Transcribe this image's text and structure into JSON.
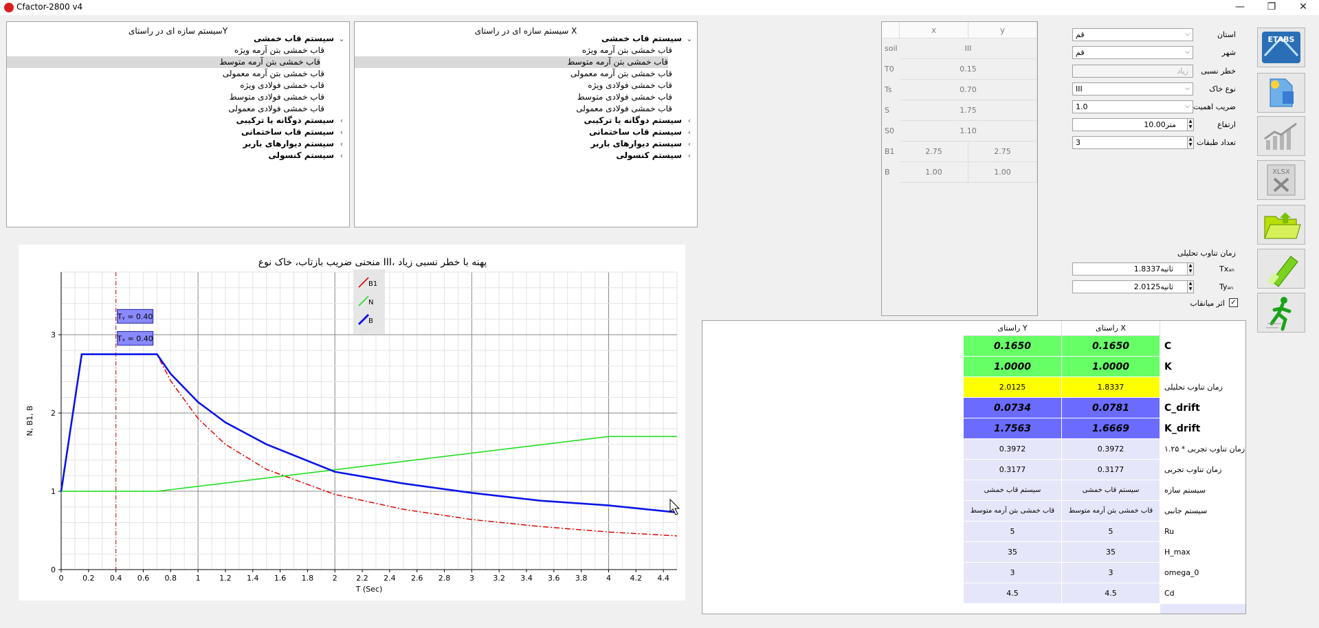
{
  "window": {
    "title": "Cfactor-2800 v4",
    "buttons": [
      "—",
      "❐",
      "✕"
    ]
  },
  "tree_y": {
    "title": "سیستم سازه ای در راستایY",
    "items": [
      {
        "label": "سیستم قاب خمشی",
        "bold": true,
        "chevron": "⌄"
      },
      {
        "label": "قاب خمشی بتن آرمه ویژه"
      },
      {
        "label": "قاب خمشی بتن آرمه متوسط",
        "selected": true
      },
      {
        "label": "قاب خمشی بتن آرمه معمولی"
      },
      {
        "label": "قاب خمشی فولادی ویژه"
      },
      {
        "label": "قاب خمشی فولادی متوسط"
      },
      {
        "label": "قاب خمشی فولادی معمولی"
      },
      {
        "label": "سیستم دوگانه یا ترکیبی",
        "bold": true,
        "chevron": "‹"
      },
      {
        "label": "سیستم قاب ساختمانی",
        "bold": true,
        "chevron": "‹"
      },
      {
        "label": "سیستم دیوارهای باربر",
        "bold": true,
        "chevron": "‹"
      },
      {
        "label": "سیستم کنسولی",
        "bold": true,
        "chevron": "‹"
      }
    ]
  },
  "tree_x": {
    "title": "سیستم سازه ای در راستای X",
    "items": [
      {
        "label": "سیستم قاب خمشی",
        "bold": true,
        "chevron": "⌄"
      },
      {
        "label": "قاب خمشی بتن آرمه ویژه"
      },
      {
        "label": "قاب خمشی بتن آرمه متوسط",
        "selected": true
      },
      {
        "label": "قاب خمشی بتن آرمه معمولی"
      },
      {
        "label": "قاب خمشی فولادی ویژه"
      },
      {
        "label": "قاب خمشی فولادی متوسط"
      },
      {
        "label": "قاب خمشی فولادی معمولی"
      },
      {
        "label": "سیستم دوگانه یا ترکیبی",
        "bold": true,
        "chevron": "‹"
      },
      {
        "label": "سیستم قاب ساختمانی",
        "bold": true,
        "chevron": "‹"
      },
      {
        "label": "سیستم دیوارهای باربر",
        "bold": true,
        "chevron": "‹"
      },
      {
        "label": "سیستم کنسولی",
        "bold": true,
        "chevron": "‹"
      }
    ]
  },
  "soil_grid": {
    "headers": [
      "x",
      "y"
    ],
    "rows": [
      {
        "label": "soil",
        "x": "III",
        "y": null
      },
      {
        "label": "T0",
        "x": "0.15",
        "y": null
      },
      {
        "label": "Ts",
        "x": "0.70",
        "y": null
      },
      {
        "label": "S",
        "x": "1.75",
        "y": null
      },
      {
        "label": "S0",
        "x": "1.10",
        "y": null
      },
      {
        "label": "B1",
        "x": "2.75",
        "y": "2.75"
      },
      {
        "label": "B",
        "x": "1.00",
        "y": "1.00"
      }
    ]
  },
  "form": {
    "province_label": "استان",
    "province_value": "قم",
    "city_label": "شهر",
    "city_value": "قم",
    "risk_label": "خطر نسبی",
    "risk_value": "زیاد",
    "soil_label": "نوع خاک",
    "soil_value": "III",
    "importance_label": "ضریب اهمیت",
    "importance_value": "1.0",
    "height_label": "ارتفاع",
    "height_value": "10.00",
    "height_unit": "متر",
    "stories_label": "تعداد طبقات",
    "stories_value": "3",
    "period_group_label": "زمان تناوب تحلیلی",
    "tx_label": "Txₐₙ",
    "tx_value": "1.8337",
    "tx_unit": "ثانیه",
    "ty_label": "Tyₐₙ",
    "ty_value": "2.0125",
    "ty_unit": "ثانیه",
    "infill_label": "اثر میانقاب",
    "infill_checked": true
  },
  "side_buttons": [
    "etabs-icon",
    "file-icon",
    "chart-icon",
    "excel-icon",
    "open-folder-icon",
    "eraser-icon",
    "runner-icon"
  ],
  "side_button_text": {
    "etabs": "ETABS",
    "xlsx": "XLSX"
  },
  "chart_data": {
    "type": "line",
    "title": "منحنی ضریب بازتاب، خاک نوع III، پهنه با خطر نسبی زیاد",
    "xlabel": "T (Sec)",
    "ylabel": "N, B1, B",
    "xlim": [
      0,
      4.5
    ],
    "ylim": [
      0,
      3.8
    ],
    "xticks": [
      "0",
      "0.2",
      "0.4",
      "0.6",
      "0.8",
      "1",
      "1.2",
      "1.4",
      "1.6",
      "1.8",
      "2",
      "2.2",
      "2.4",
      "2.6",
      "2.8",
      "3",
      "3.2",
      "3.4",
      "3.6",
      "3.8",
      "4",
      "4.2",
      "4.4"
    ],
    "yticks": [
      "0",
      "1",
      "2",
      "3"
    ],
    "legend": [
      "B1",
      "N",
      "B"
    ],
    "legend_position": "top-center",
    "colors": {
      "B1": "#e00000",
      "N": "#22dd22",
      "B": "#0a14e6",
      "vline": "#c00000"
    },
    "grid": true,
    "vline_x": 0.4,
    "annotations": [
      "Tᵧ = 0.40",
      "Tₓ = 0.40"
    ],
    "series": [
      {
        "name": "B1",
        "x": [
          0,
          0.15,
          0.7,
          0.8,
          1,
          1.2,
          1.5,
          2,
          2.5,
          3,
          3.5,
          4,
          4.5
        ],
        "values": [
          1,
          2.75,
          2.75,
          2.41,
          1.93,
          1.6,
          1.28,
          0.96,
          0.77,
          0.64,
          0.55,
          0.48,
          0.43
        ]
      },
      {
        "name": "N",
        "x": [
          0,
          0.7,
          4,
          4.5
        ],
        "values": [
          1,
          1,
          1.7,
          1.7
        ]
      },
      {
        "name": "B",
        "x": [
          0,
          0.15,
          0.7,
          0.8,
          1,
          1.2,
          1.5,
          2,
          2.5,
          3,
          3.5,
          4,
          4.5
        ],
        "values": [
          1,
          2.75,
          2.75,
          2.5,
          2.14,
          1.88,
          1.6,
          1.25,
          1.1,
          0.98,
          0.88,
          0.82,
          0.73
        ]
      }
    ]
  },
  "results": {
    "headers": [
      "راستای X",
      "راستای Y"
    ],
    "rows": [
      {
        "label": "C",
        "x": "0.1650",
        "y": "0.1650",
        "style": "green"
      },
      {
        "label": "K",
        "x": "1.0000",
        "y": "1.0000",
        "style": "green"
      },
      {
        "label": "زمان تناوب تحلیلی",
        "x": "1.8337",
        "y": "2.0125",
        "style": "yellow"
      },
      {
        "label": "C_drift",
        "x": "0.0781",
        "y": "0.0734",
        "style": "blue"
      },
      {
        "label": "K_drift",
        "x": "1.6669",
        "y": "1.7563",
        "style": "blue"
      },
      {
        "label": "زمان تناوب تجربی * ۱.۲۵",
        "x": "0.3972",
        "y": "0.3972",
        "style": "plain"
      },
      {
        "label": "زمان تناوب تجربی",
        "x": "0.3177",
        "y": "0.3177",
        "style": "plain"
      },
      {
        "label": "سیستم سازه",
        "x": "سیستم قاب خمشی",
        "y": "سیستم قاب خمشی",
        "style": "plain"
      },
      {
        "label": "سیستم جانبی",
        "x": "قاب خمشی بتن آرمه متوسط",
        "y": "قاب خمشی بتن آرمه متوسط",
        "style": "plain"
      },
      {
        "label": "Ru",
        "x": "5",
        "y": "5",
        "style": "plain"
      },
      {
        "label": "H_max",
        "x": "35",
        "y": "35",
        "style": "plain"
      },
      {
        "label": "omega_0",
        "x": "3",
        "y": "3",
        "style": "plain"
      },
      {
        "label": "Cd",
        "x": "4.5",
        "y": "4.5",
        "style": "plain"
      }
    ],
    "colors": {
      "green": "#66ff66",
      "yellow": "#ffff00",
      "blue": "#6b6bff",
      "plain": "#e6e6fa"
    }
  }
}
